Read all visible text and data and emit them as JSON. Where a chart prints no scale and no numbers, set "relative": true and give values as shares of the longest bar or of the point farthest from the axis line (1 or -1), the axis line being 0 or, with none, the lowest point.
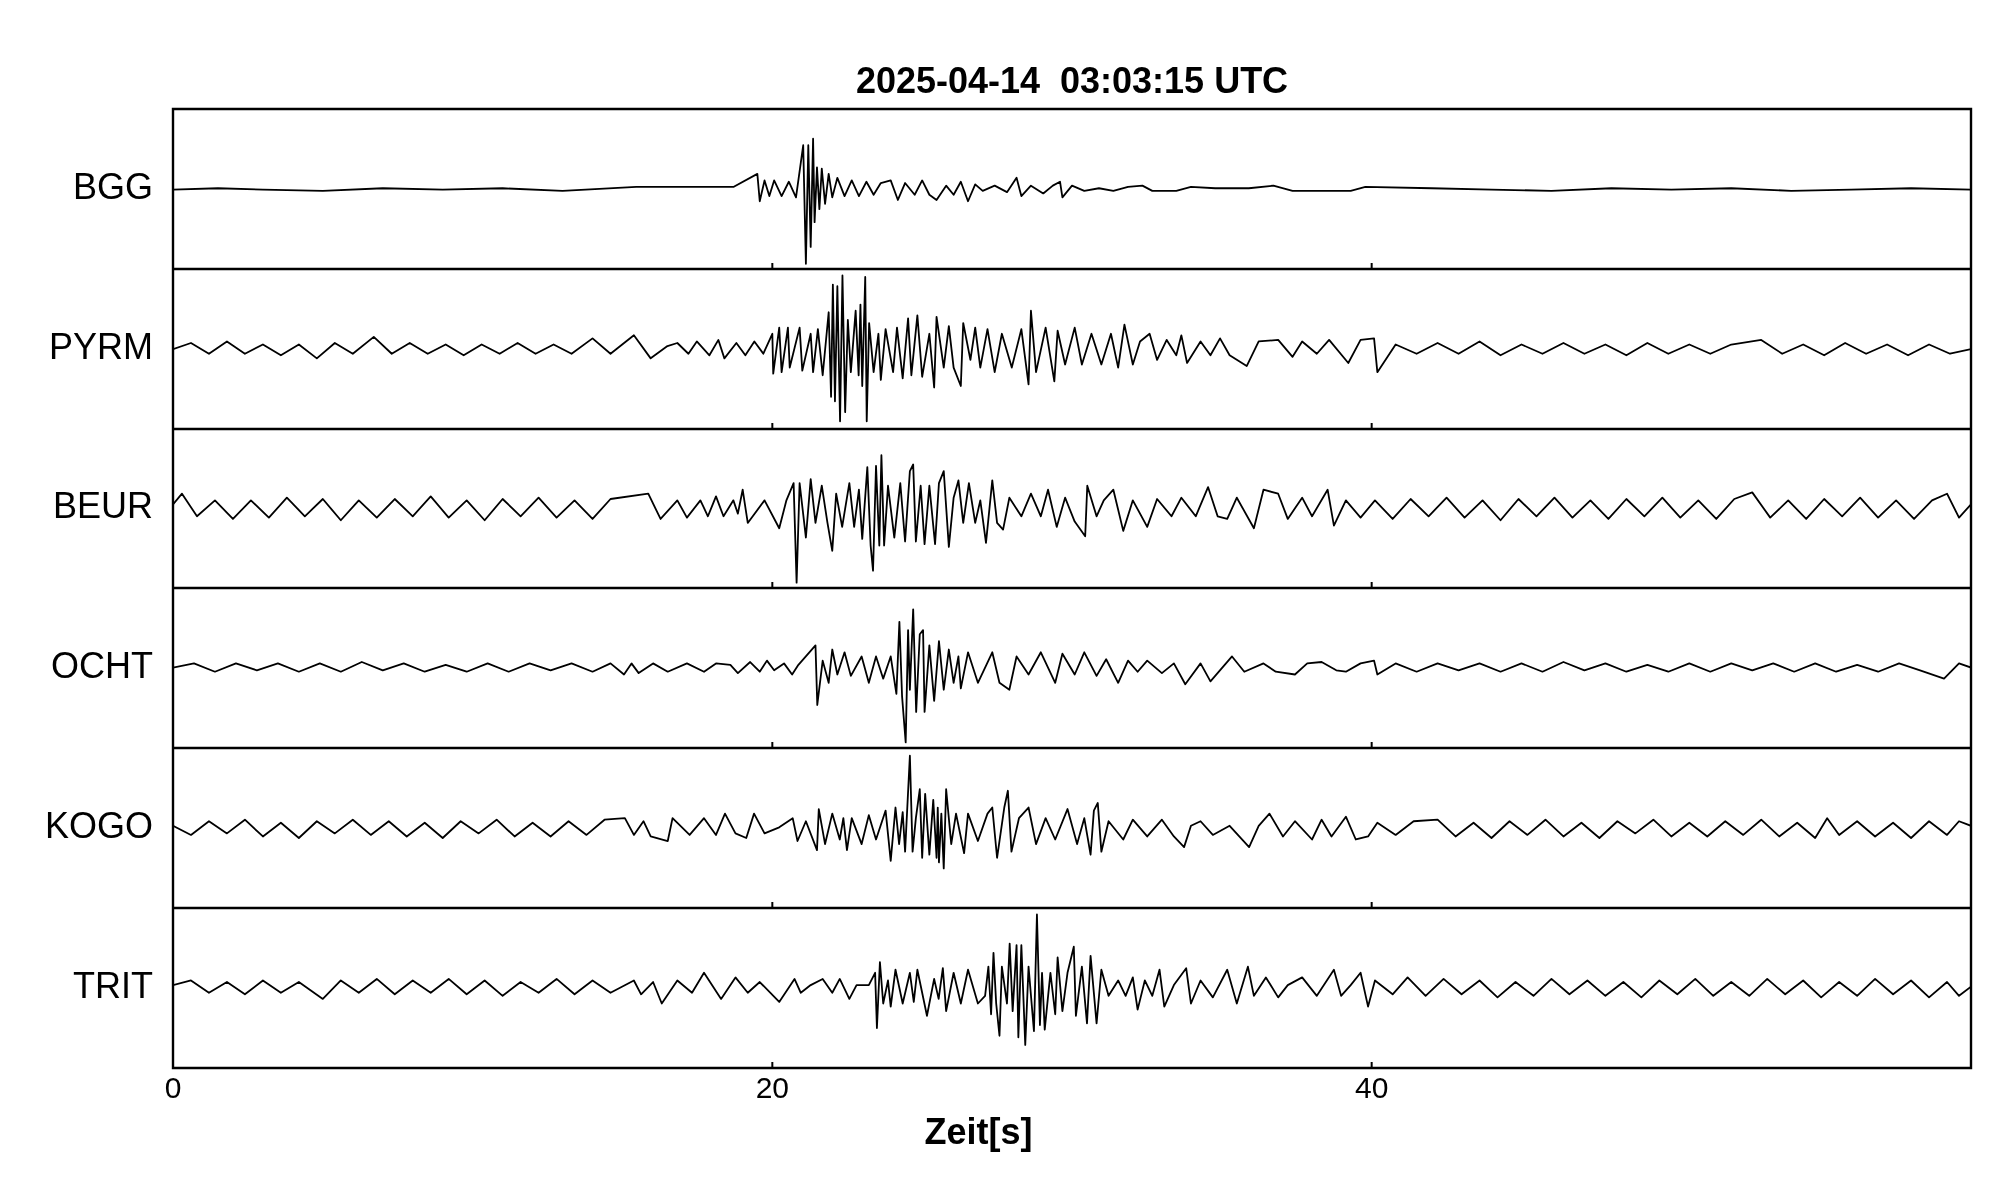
{
  "chart_data": [
    {
      "type": "line",
      "title": "2025-04-14  03:03:15 UTC",
      "ylabel": "BGG",
      "color": "#000000",
      "relative": true,
      "xlim": [
        0,
        60
      ],
      "xticks": [
        0,
        20,
        40
      ],
      "tick_labels": false,
      "x": [
        0,
        1.5,
        3,
        5,
        7,
        9,
        11,
        13,
        15.46,
        17.9,
        18.7,
        19.5,
        19.58,
        19.74,
        19.9,
        20.06,
        20.31,
        20.55,
        20.79,
        21.03,
        21.12,
        21.2,
        21.28,
        21.36,
        21.41,
        21.49,
        21.57,
        21.65,
        21.76,
        21.88,
        22.0,
        22.17,
        22.41,
        22.65,
        22.89,
        23.14,
        23.38,
        23.62,
        23.95,
        24.19,
        24.43,
        24.75,
        25.0,
        25.24,
        25.48,
        25.8,
        26.05,
        26.29,
        26.53,
        26.77,
        27.02,
        27.42,
        27.83,
        28.15,
        28.31,
        28.63,
        29.04,
        29.36,
        29.6,
        29.68,
        30.0,
        30.41,
        30.9,
        31.38,
        31.87,
        32.35,
        32.68,
        33.48,
        33.97,
        34.78,
        35.9,
        36.72,
        37.36,
        38.33,
        39.3,
        39.79,
        42,
        44,
        46,
        48,
        50,
        52,
        54,
        56,
        58,
        60
      ],
      "values": [
        0.61,
        0.62,
        0.61,
        0.6,
        0.62,
        0.61,
        0.62,
        0.6,
        0.63,
        0.63,
        0.63,
        0.73,
        0.52,
        0.68,
        0.56,
        0.68,
        0.56,
        0.67,
        0.55,
        0.95,
        0.04,
        0.95,
        0.17,
        1,
        0.36,
        0.78,
        0.46,
        0.77,
        0.5,
        0.73,
        0.55,
        0.7,
        0.56,
        0.68,
        0.56,
        0.67,
        0.57,
        0.66,
        0.68,
        0.53,
        0.66,
        0.57,
        0.68,
        0.57,
        0.53,
        0.64,
        0.57,
        0.67,
        0.52,
        0.65,
        0.6,
        0.64,
        0.59,
        0.7,
        0.56,
        0.64,
        0.58,
        0.64,
        0.67,
        0.55,
        0.64,
        0.6,
        0.62,
        0.6,
        0.63,
        0.64,
        0.6,
        0.6,
        0.63,
        0.62,
        0.62,
        0.64,
        0.6,
        0.6,
        0.6,
        0.63,
        0.62,
        0.61,
        0.6,
        0.62,
        0.61,
        0.62,
        0.6,
        0.61,
        0.62,
        0.61
      ]
    },
    {
      "type": "line",
      "ylabel": "PYRM",
      "color": "#000000",
      "relative": true,
      "xlim": [
        0,
        60
      ],
      "xticks": [
        0,
        20,
        40
      ],
      "tick_labels": false,
      "x": [
        0,
        0.6,
        1.2,
        1.8,
        2.4,
        3.0,
        3.6,
        4.2,
        4.8,
        5.4,
        6.0,
        6.7,
        7.3,
        7.9,
        8.5,
        9.1,
        9.7,
        10.3,
        10.9,
        11.5,
        12.1,
        12.7,
        13.3,
        14.0,
        14.6,
        15.38,
        15.94,
        16.5,
        16.83,
        17.2,
        17.48,
        17.9,
        18.2,
        18.4,
        18.8,
        19.1,
        19.4,
        19.7,
        20.0,
        20.03,
        20.23,
        20.31,
        20.52,
        20.58,
        20.91,
        21.0,
        21.28,
        21.36,
        21.52,
        21.68,
        21.88,
        21.96,
        22.02,
        22.09,
        22.17,
        22.26,
        22.34,
        22.43,
        22.52,
        22.62,
        22.78,
        22.88,
        22.94,
        23.0,
        23.1,
        23.15,
        23.23,
        23.38,
        23.54,
        23.62,
        23.78,
        24.03,
        24.16,
        24.35,
        24.53,
        24.64,
        24.84,
        25.0,
        25.24,
        25.4,
        25.48,
        25.72,
        25.89,
        26.05,
        26.29,
        26.37,
        26.61,
        26.77,
        26.94,
        27.18,
        27.42,
        27.66,
        27.99,
        28.31,
        28.55,
        28.63,
        28.8,
        29.12,
        29.41,
        29.52,
        29.77,
        30.09,
        30.33,
        30.65,
        30.98,
        31.3,
        31.54,
        31.75,
        32.03,
        32.27,
        32.59,
        32.84,
        33.16,
        33.48,
        33.65,
        33.84,
        34.29,
        34.62,
        34.94,
        35.26,
        35.83,
        36.23,
        36.88,
        37.36,
        37.68,
        38.17,
        38.58,
        39.22,
        39.63,
        40.08,
        40.19,
        40.8,
        41.5,
        42.2,
        42.9,
        43.6,
        44.3,
        45.0,
        45.7,
        46.4,
        47.1,
        47.8,
        48.5,
        49.2,
        49.9,
        50.6,
        51.3,
        52.0,
        53.0,
        53.7,
        54.4,
        55.1,
        55.8,
        56.5,
        57.2,
        57.9,
        58.6,
        59.3,
        60
      ],
      "values": [
        0.52,
        0.56,
        0.49,
        0.57,
        0.49,
        0.55,
        0.48,
        0.55,
        0.46,
        0.56,
        0.49,
        0.6,
        0.49,
        0.56,
        0.49,
        0.55,
        0.48,
        0.55,
        0.49,
        0.56,
        0.49,
        0.55,
        0.49,
        0.59,
        0.49,
        0.61,
        0.46,
        0.54,
        0.56,
        0.49,
        0.57,
        0.48,
        0.58,
        0.46,
        0.56,
        0.48,
        0.57,
        0.49,
        0.62,
        0.36,
        0.66,
        0.37,
        0.66,
        0.4,
        0.66,
        0.38,
        0.62,
        0.37,
        0.65,
        0.35,
        0.76,
        0.21,
        0.94,
        0.18,
        0.93,
        0.05,
        1,
        0.11,
        0.71,
        0.37,
        0.77,
        0.35,
        0.81,
        0.28,
        0.99,
        0.05,
        0.69,
        0.37,
        0.62,
        0.32,
        0.65,
        0.37,
        0.66,
        0.33,
        0.72,
        0.35,
        0.74,
        0.34,
        0.62,
        0.27,
        0.73,
        0.4,
        0.67,
        0.4,
        0.28,
        0.69,
        0.45,
        0.66,
        0.4,
        0.65,
        0.37,
        0.62,
        0.4,
        0.65,
        0.29,
        0.77,
        0.37,
        0.66,
        0.31,
        0.64,
        0.42,
        0.66,
        0.42,
        0.62,
        0.42,
        0.62,
        0.4,
        0.68,
        0.42,
        0.57,
        0.62,
        0.45,
        0.58,
        0.48,
        0.61,
        0.43,
        0.57,
        0.48,
        0.59,
        0.48,
        0.41,
        0.57,
        0.58,
        0.47,
        0.57,
        0.49,
        0.58,
        0.43,
        0.58,
        0.59,
        0.37,
        0.55,
        0.49,
        0.56,
        0.49,
        0.57,
        0.48,
        0.55,
        0.49,
        0.56,
        0.49,
        0.55,
        0.48,
        0.56,
        0.49,
        0.55,
        0.49,
        0.55,
        0.58,
        0.49,
        0.55,
        0.48,
        0.56,
        0.49,
        0.55,
        0.48,
        0.55,
        0.49,
        0.52
      ]
    },
    {
      "type": "line",
      "ylabel": "BEUR",
      "color": "#000000",
      "relative": true,
      "xlim": [
        0,
        60
      ],
      "xticks": [
        0,
        20,
        40
      ],
      "tick_labels": false,
      "x": [
        0,
        0.3,
        0.8,
        1.4,
        2.0,
        2.6,
        3.2,
        3.8,
        4.4,
        5.0,
        5.6,
        6.2,
        6.8,
        7.4,
        8.0,
        8.6,
        9.2,
        9.8,
        10.4,
        11.0,
        11.6,
        12.2,
        12.8,
        13.4,
        14.0,
        14.6,
        15.86,
        16.27,
        16.83,
        17.15,
        17.6,
        17.85,
        18.12,
        18.37,
        18.7,
        18.85,
        19.01,
        19.18,
        19.74,
        20.23,
        20.47,
        20.71,
        20.81,
        20.91,
        21.12,
        21.28,
        21.44,
        21.65,
        21.84,
        22.0,
        22.13,
        22.33,
        22.57,
        22.73,
        22.89,
        23.0,
        23.17,
        23.28,
        23.36,
        23.46,
        23.57,
        23.64,
        23.73,
        23.86,
        24.07,
        24.27,
        24.43,
        24.59,
        24.7,
        24.79,
        24.95,
        25.08,
        25.24,
        25.43,
        25.56,
        25.72,
        25.89,
        26.05,
        26.21,
        26.37,
        26.56,
        26.77,
        26.94,
        27.13,
        27.34,
        27.5,
        27.7,
        27.91,
        28.31,
        28.63,
        28.96,
        29.2,
        29.49,
        29.77,
        30.09,
        30.44,
        30.51,
        30.82,
        31.06,
        31.38,
        31.71,
        32.03,
        32.51,
        32.84,
        33.32,
        33.65,
        34.13,
        34.54,
        34.86,
        35.18,
        35.5,
        36.07,
        36.39,
        36.88,
        37.2,
        37.68,
        38.01,
        38.53,
        38.74,
        39.14,
        39.63,
        40.11,
        40.7,
        41.3,
        41.9,
        42.5,
        43.1,
        43.7,
        44.3,
        44.9,
        45.5,
        46.1,
        46.7,
        47.3,
        47.9,
        48.5,
        49.1,
        49.7,
        50.3,
        50.9,
        51.5,
        52.1,
        52.7,
        53.3,
        53.9,
        54.5,
        55.1,
        55.7,
        56.3,
        56.9,
        57.5,
        58.1,
        58.7,
        59.2,
        59.6,
        60
      ],
      "values": [
        0.63,
        0.71,
        0.54,
        0.66,
        0.52,
        0.66,
        0.53,
        0.68,
        0.54,
        0.67,
        0.51,
        0.66,
        0.53,
        0.67,
        0.54,
        0.69,
        0.53,
        0.66,
        0.51,
        0.67,
        0.54,
        0.68,
        0.53,
        0.66,
        0.52,
        0.67,
        0.71,
        0.52,
        0.66,
        0.53,
        0.66,
        0.54,
        0.69,
        0.54,
        0.66,
        0.56,
        0.74,
        0.49,
        0.66,
        0.45,
        0.66,
        0.79,
        0.04,
        0.79,
        0.38,
        0.82,
        0.49,
        0.77,
        0.49,
        0.28,
        0.71,
        0.46,
        0.79,
        0.46,
        0.74,
        0.37,
        0.91,
        0.32,
        0.13,
        0.92,
        0.32,
        1,
        0.32,
        0.77,
        0.38,
        0.79,
        0.35,
        0.88,
        0.93,
        0.35,
        0.77,
        0.33,
        0.77,
        0.33,
        0.79,
        0.88,
        0.31,
        0.68,
        0.81,
        0.49,
        0.79,
        0.49,
        0.66,
        0.34,
        0.81,
        0.49,
        0.44,
        0.68,
        0.54,
        0.71,
        0.54,
        0.74,
        0.46,
        0.68,
        0.5,
        0.39,
        0.77,
        0.54,
        0.66,
        0.74,
        0.43,
        0.66,
        0.46,
        0.67,
        0.54,
        0.68,
        0.54,
        0.76,
        0.54,
        0.52,
        0.68,
        0.45,
        0.74,
        0.71,
        0.52,
        0.68,
        0.54,
        0.74,
        0.47,
        0.66,
        0.53,
        0.66,
        0.52,
        0.67,
        0.54,
        0.68,
        0.53,
        0.66,
        0.51,
        0.67,
        0.54,
        0.68,
        0.53,
        0.66,
        0.52,
        0.67,
        0.54,
        0.68,
        0.53,
        0.66,
        0.52,
        0.67,
        0.72,
        0.53,
        0.66,
        0.52,
        0.67,
        0.54,
        0.68,
        0.53,
        0.66,
        0.52,
        0.66,
        0.71,
        0.53,
        0.63
      ]
    },
    {
      "type": "line",
      "ylabel": "OCHT",
      "color": "#000000",
      "relative": true,
      "xlim": [
        0,
        60
      ],
      "xticks": [
        0,
        20,
        40
      ],
      "tick_labels": false,
      "x": [
        0,
        0.7,
        1.4,
        2.1,
        2.8,
        3.5,
        4.2,
        4.9,
        5.6,
        6.3,
        7.0,
        7.7,
        8.4,
        9.1,
        9.8,
        10.5,
        11.2,
        11.9,
        12.6,
        13.3,
        14.0,
        14.6,
        15.05,
        15.3,
        15.54,
        16.02,
        16.51,
        17.15,
        17.72,
        18.12,
        18.6,
        18.85,
        19.26,
        19.58,
        19.82,
        20.06,
        20.39,
        20.66,
        20.87,
        21.44,
        21.5,
        21.68,
        21.88,
        22.0,
        22.17,
        22.41,
        22.62,
        22.98,
        23.22,
        23.46,
        23.7,
        23.95,
        24.14,
        24.24,
        24.33,
        24.45,
        24.53,
        24.59,
        24.7,
        24.8,
        24.92,
        25.03,
        25.08,
        25.24,
        25.4,
        25.56,
        25.72,
        25.89,
        26.05,
        26.21,
        26.29,
        26.53,
        26.86,
        27.34,
        27.58,
        27.91,
        28.15,
        28.55,
        28.96,
        29.44,
        29.68,
        30.09,
        30.41,
        30.82,
        31.14,
        31.54,
        31.87,
        32.19,
        32.51,
        33.0,
        33.4,
        33.78,
        34.29,
        34.62,
        35.34,
        35.75,
        36.39,
        36.8,
        37.44,
        37.85,
        38.33,
        38.82,
        39.14,
        39.63,
        40.08,
        40.19,
        40.8,
        41.5,
        42.2,
        42.9,
        43.6,
        44.3,
        45.0,
        45.7,
        46.4,
        47.1,
        47.8,
        48.5,
        49.2,
        49.9,
        50.6,
        51.3,
        52.0,
        52.7,
        53.4,
        54.1,
        54.8,
        55.5,
        56.2,
        56.9,
        57.6,
        58.3,
        59.1,
        59.6,
        60
      ],
      "values": [
        0.58,
        0.61,
        0.55,
        0.61,
        0.56,
        0.61,
        0.55,
        0.61,
        0.55,
        0.62,
        0.56,
        0.61,
        0.55,
        0.6,
        0.55,
        0.61,
        0.55,
        0.61,
        0.56,
        0.61,
        0.55,
        0.61,
        0.53,
        0.61,
        0.54,
        0.61,
        0.55,
        0.61,
        0.55,
        0.61,
        0.6,
        0.54,
        0.62,
        0.55,
        0.63,
        0.56,
        0.61,
        0.53,
        0.6,
        0.74,
        0.31,
        0.63,
        0.47,
        0.71,
        0.53,
        0.69,
        0.52,
        0.66,
        0.47,
        0.66,
        0.5,
        0.66,
        0.39,
        0.91,
        0.37,
        0.04,
        0.85,
        0.42,
        1,
        0.26,
        0.82,
        0.85,
        0.26,
        0.74,
        0.34,
        0.77,
        0.42,
        0.71,
        0.47,
        0.66,
        0.43,
        0.69,
        0.47,
        0.69,
        0.47,
        0.42,
        0.66,
        0.53,
        0.69,
        0.47,
        0.68,
        0.53,
        0.69,
        0.52,
        0.64,
        0.47,
        0.63,
        0.55,
        0.63,
        0.54,
        0.61,
        0.46,
        0.61,
        0.48,
        0.66,
        0.55,
        0.61,
        0.55,
        0.53,
        0.61,
        0.62,
        0.56,
        0.55,
        0.61,
        0.63,
        0.53,
        0.61,
        0.55,
        0.61,
        0.56,
        0.61,
        0.55,
        0.61,
        0.55,
        0.62,
        0.56,
        0.61,
        0.55,
        0.6,
        0.55,
        0.61,
        0.55,
        0.61,
        0.56,
        0.61,
        0.55,
        0.61,
        0.55,
        0.6,
        0.55,
        0.61,
        0.56,
        0.5,
        0.61,
        0.58
      ]
    },
    {
      "type": "line",
      "ylabel": "KOGO",
      "color": "#000000",
      "relative": true,
      "xlim": [
        0,
        60
      ],
      "xticks": [
        0,
        20,
        40
      ],
      "tick_labels": false,
      "x": [
        0,
        0.6,
        1.2,
        1.8,
        2.4,
        3.0,
        3.6,
        4.2,
        4.8,
        5.4,
        6.0,
        6.6,
        7.2,
        7.8,
        8.4,
        9.0,
        9.6,
        10.2,
        10.8,
        11.4,
        12.0,
        12.6,
        13.2,
        13.8,
        14.4,
        15.08,
        15.38,
        15.7,
        15.94,
        16.51,
        16.67,
        17.24,
        17.72,
        18.12,
        18.42,
        18.77,
        19.13,
        19.39,
        19.74,
        20.23,
        20.68,
        20.84,
        21.12,
        21.49,
        21.55,
        21.76,
        22.0,
        22.25,
        22.37,
        22.49,
        22.65,
        22.98,
        23.22,
        23.46,
        23.78,
        23.95,
        24.11,
        24.23,
        24.35,
        24.43,
        24.59,
        24.68,
        24.79,
        24.92,
        25.0,
        25.1,
        25.24,
        25.37,
        25.48,
        25.52,
        25.56,
        25.64,
        25.72,
        25.8,
        25.97,
        26.13,
        26.4,
        26.53,
        26.86,
        27.18,
        27.34,
        27.5,
        27.74,
        27.86,
        27.98,
        28.23,
        28.55,
        28.8,
        29.12,
        29.44,
        29.85,
        30.17,
        30.41,
        30.62,
        30.73,
        30.86,
        30.98,
        31.22,
        31.71,
        32.03,
        32.51,
        33.0,
        33.4,
        33.74,
        33.97,
        34.29,
        34.7,
        35.26,
        35.91,
        36.23,
        36.59,
        37.04,
        37.44,
        38.01,
        38.33,
        38.66,
        39.14,
        39.47,
        39.88,
        40.19,
        40.8,
        41.4,
        42.2,
        42.8,
        43.4,
        44.0,
        44.6,
        45.2,
        45.8,
        46.4,
        47.0,
        47.6,
        48.2,
        48.8,
        49.4,
        50.0,
        50.6,
        51.2,
        51.8,
        52.4,
        53.0,
        53.6,
        54.2,
        54.8,
        55.2,
        55.6,
        56.2,
        56.8,
        57.4,
        58.0,
        58.6,
        59.2,
        59.6,
        60
      ],
      "values": [
        0.54,
        0.48,
        0.57,
        0.49,
        0.58,
        0.47,
        0.56,
        0.46,
        0.57,
        0.49,
        0.58,
        0.48,
        0.57,
        0.47,
        0.56,
        0.46,
        0.57,
        0.49,
        0.58,
        0.47,
        0.56,
        0.47,
        0.57,
        0.48,
        0.58,
        0.59,
        0.48,
        0.57,
        0.47,
        0.44,
        0.59,
        0.48,
        0.59,
        0.48,
        0.62,
        0.49,
        0.46,
        0.62,
        0.49,
        0.53,
        0.59,
        0.44,
        0.57,
        0.38,
        0.65,
        0.42,
        0.62,
        0.45,
        0.59,
        0.38,
        0.59,
        0.42,
        0.61,
        0.45,
        0.64,
        0.31,
        0.66,
        0.42,
        0.63,
        0.37,
        1,
        0.37,
        0.59,
        0.78,
        0.33,
        0.75,
        0.35,
        0.71,
        0.33,
        0.66,
        0.3,
        0.62,
        0.26,
        0.78,
        0.42,
        0.62,
        0.36,
        0.62,
        0.44,
        0.62,
        0.66,
        0.33,
        0.66,
        0.77,
        0.37,
        0.59,
        0.66,
        0.42,
        0.59,
        0.45,
        0.65,
        0.42,
        0.59,
        0.35,
        0.64,
        0.69,
        0.37,
        0.57,
        0.45,
        0.58,
        0.47,
        0.58,
        0.47,
        0.4,
        0.54,
        0.57,
        0.48,
        0.54,
        0.4,
        0.54,
        0.62,
        0.47,
        0.57,
        0.45,
        0.58,
        0.47,
        0.6,
        0.45,
        0.47,
        0.56,
        0.48,
        0.57,
        0.58,
        0.47,
        0.56,
        0.46,
        0.57,
        0.48,
        0.58,
        0.47,
        0.56,
        0.46,
        0.57,
        0.49,
        0.58,
        0.47,
        0.56,
        0.47,
        0.57,
        0.48,
        0.58,
        0.47,
        0.56,
        0.46,
        0.59,
        0.48,
        0.57,
        0.47,
        0.56,
        0.46,
        0.57,
        0.48,
        0.57,
        0.54
      ]
    },
    {
      "type": "line",
      "ylabel": "TRIT",
      "xlabel": "Zeit[s]",
      "color": "#000000",
      "relative": true,
      "xlim": [
        0,
        60
      ],
      "xticks": [
        0,
        20,
        40
      ],
      "tick_labels": "x",
      "x": [
        0,
        0.6,
        1.2,
        1.8,
        2.4,
        3.0,
        3.6,
        4.2,
        5.0,
        5.6,
        6.2,
        6.8,
        7.4,
        8.0,
        8.6,
        9.2,
        9.8,
        10.4,
        11.0,
        11.6,
        12.2,
        12.8,
        13.4,
        14.0,
        14.6,
        15.38,
        15.62,
        16.02,
        16.31,
        16.83,
        17.32,
        17.72,
        18.29,
        18.77,
        19.18,
        19.58,
        20.23,
        20.74,
        20.95,
        21.28,
        21.68,
        22.0,
        22.25,
        22.57,
        22.81,
        23.22,
        23.43,
        23.49,
        23.59,
        23.7,
        23.86,
        23.95,
        24.11,
        24.35,
        24.59,
        24.72,
        24.84,
        25.16,
        25.4,
        25.55,
        25.69,
        25.8,
        26.05,
        26.29,
        26.53,
        26.86,
        27.1,
        27.21,
        27.3,
        27.38,
        27.47,
        27.58,
        27.66,
        27.83,
        27.92,
        28.02,
        28.15,
        28.21,
        28.31,
        28.44,
        28.55,
        28.73,
        28.83,
        28.93,
        29.0,
        29.09,
        29.28,
        29.44,
        29.52,
        29.68,
        29.85,
        30.06,
        30.13,
        30.33,
        30.5,
        30.62,
        30.82,
        30.98,
        31.22,
        31.54,
        31.79,
        32.03,
        32.19,
        32.43,
        32.68,
        32.92,
        33.08,
        33.4,
        33.81,
        33.97,
        34.29,
        34.7,
        35.18,
        35.5,
        35.87,
        36.07,
        36.47,
        36.88,
        37.2,
        37.68,
        38.17,
        38.74,
        38.98,
        39.3,
        39.63,
        39.88,
        40.11,
        40.7,
        41.2,
        41.8,
        42.4,
        43.0,
        43.6,
        44.2,
        44.8,
        45.4,
        46.0,
        46.6,
        47.2,
        47.8,
        48.4,
        49.0,
        49.6,
        50.2,
        50.8,
        51.4,
        52.0,
        52.6,
        53.2,
        53.8,
        54.4,
        55.0,
        55.6,
        56.2,
        56.8,
        57.4,
        58.0,
        58.6,
        59.2,
        59.6,
        60
      ],
      "values": [
        0.54,
        0.57,
        0.49,
        0.56,
        0.48,
        0.57,
        0.49,
        0.56,
        0.45,
        0.57,
        0.49,
        0.58,
        0.48,
        0.57,
        0.49,
        0.58,
        0.48,
        0.57,
        0.47,
        0.56,
        0.49,
        0.58,
        0.48,
        0.57,
        0.49,
        0.57,
        0.48,
        0.56,
        0.42,
        0.57,
        0.49,
        0.62,
        0.45,
        0.59,
        0.49,
        0.56,
        0.43,
        0.58,
        0.49,
        0.54,
        0.58,
        0.49,
        0.58,
        0.45,
        0.54,
        0.54,
        0.62,
        0.26,
        0.69,
        0.42,
        0.57,
        0.4,
        0.64,
        0.42,
        0.62,
        0.43,
        0.64,
        0.34,
        0.58,
        0.45,
        0.65,
        0.37,
        0.62,
        0.42,
        0.64,
        0.42,
        0.47,
        0.66,
        0.35,
        0.75,
        0.42,
        0.21,
        0.66,
        0.42,
        0.81,
        0.37,
        0.8,
        0.2,
        0.8,
        0.15,
        0.66,
        0.24,
        1,
        0.28,
        0.62,
        0.25,
        0.62,
        0.35,
        0.72,
        0.37,
        0.62,
        0.79,
        0.34,
        0.66,
        0.29,
        0.73,
        0.29,
        0.64,
        0.47,
        0.57,
        0.47,
        0.59,
        0.38,
        0.57,
        0.47,
        0.64,
        0.4,
        0.54,
        0.65,
        0.42,
        0.57,
        0.46,
        0.64,
        0.42,
        0.66,
        0.47,
        0.59,
        0.46,
        0.54,
        0.59,
        0.47,
        0.64,
        0.47,
        0.54,
        0.62,
        0.4,
        0.57,
        0.48,
        0.59,
        0.47,
        0.58,
        0.48,
        0.57,
        0.46,
        0.56,
        0.47,
        0.58,
        0.48,
        0.57,
        0.47,
        0.56,
        0.46,
        0.57,
        0.48,
        0.58,
        0.47,
        0.56,
        0.47,
        0.58,
        0.48,
        0.57,
        0.46,
        0.56,
        0.47,
        0.58,
        0.48,
        0.57,
        0.46,
        0.56,
        0.47,
        0.53
      ]
    }
  ]
}
